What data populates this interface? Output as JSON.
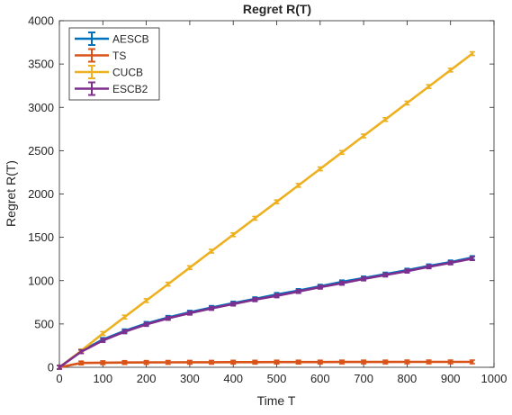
{
  "chart_data": {
    "type": "line",
    "title": "Regret R(T)",
    "xlabel": "Time T",
    "ylabel": "Regret R(T)",
    "xlim": [
      0,
      1000
    ],
    "ylim": [
      0,
      4000
    ],
    "xticks": [
      0,
      100,
      200,
      300,
      400,
      500,
      600,
      700,
      800,
      900,
      1000
    ],
    "yticks": [
      0,
      500,
      1000,
      1500,
      2000,
      2500,
      3000,
      3500,
      4000
    ],
    "grid": false,
    "error_bars": true,
    "legend_position": "top-left",
    "x": [
      0,
      50,
      100,
      150,
      200,
      250,
      300,
      350,
      400,
      450,
      500,
      550,
      600,
      650,
      700,
      750,
      800,
      850,
      900,
      950
    ],
    "series": [
      {
        "name": "AESCB",
        "color": "#0072BD",
        "values": [
          0,
          185,
          320,
          420,
          505,
          575,
          635,
          690,
          740,
          790,
          840,
          885,
          935,
          985,
          1030,
          1075,
          1120,
          1170,
          1215,
          1265
        ]
      },
      {
        "name": "TS",
        "color": "#D95319",
        "values": [
          0,
          50,
          53,
          55,
          56,
          57,
          58,
          58,
          59,
          59,
          60,
          60,
          60,
          61,
          61,
          61,
          62,
          62,
          62,
          62
        ]
      },
      {
        "name": "CUCB",
        "color": "#EDB120",
        "values": [
          0,
          190,
          390,
          580,
          770,
          960,
          1150,
          1340,
          1530,
          1720,
          1910,
          2100,
          2290,
          2480,
          2670,
          2860,
          3050,
          3240,
          3430,
          3620
        ]
      },
      {
        "name": "ESCB2",
        "color": "#7E2F8E",
        "values": [
          0,
          180,
          310,
          410,
          495,
          565,
          625,
          680,
          730,
          780,
          825,
          875,
          925,
          970,
          1020,
          1065,
          1110,
          1160,
          1205,
          1255
        ]
      }
    ]
  }
}
